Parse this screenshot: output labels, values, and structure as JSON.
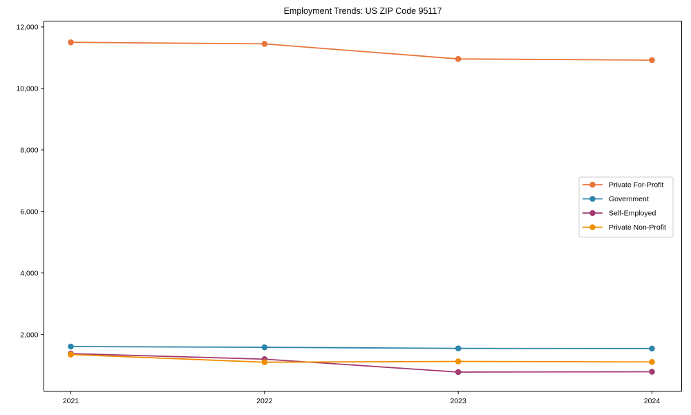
{
  "chart_data": {
    "type": "line",
    "title": "Employment Trends: US ZIP Code 95117",
    "categories": [
      "2021",
      "2022",
      "2023",
      "2024"
    ],
    "series": [
      {
        "name": "Private For-Profit",
        "color": "#E8743B",
        "values": [
          11500,
          11450,
          10960,
          10920
        ]
      },
      {
        "name": "Government",
        "color": "#2E86AB",
        "values": [
          1610,
          1585,
          1550,
          1545
        ]
      },
      {
        "name": "Self-Employed",
        "color": "#A23B72",
        "values": [
          1380,
          1200,
          780,
          790
        ]
      },
      {
        "name": "Private Non-Profit",
        "color": "#F18F01",
        "values": [
          1350,
          1100,
          1125,
          1110
        ]
      }
    ],
    "xlabel": "",
    "ylabel": "",
    "ylim": [
      160,
      12190
    ],
    "yticks": [
      2000,
      4000,
      6000,
      8000,
      10000,
      12000
    ],
    "ytick_labels": [
      "2,000",
      "4,000",
      "6,000",
      "8,000",
      "10,000",
      "12,000"
    ],
    "grid": false,
    "legend_position": "center-right",
    "marker": "circle",
    "axis_color": "#000000",
    "legend_border_color": "#cccccc",
    "background_color": "#ffffff"
  }
}
